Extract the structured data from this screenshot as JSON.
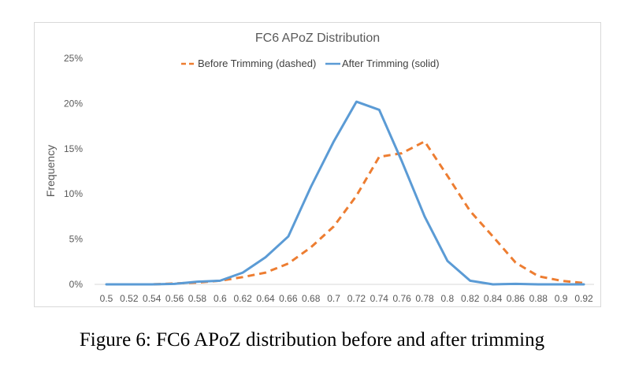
{
  "chart_data": {
    "type": "line",
    "title": "FC6 APoZ Distribution",
    "xlabel": "",
    "ylabel": "Frequency",
    "categories": [
      "0.5",
      "0.52",
      "0.54",
      "0.56",
      "0.58",
      "0.6",
      "0.62",
      "0.64",
      "0.66",
      "0.68",
      "0.7",
      "0.72",
      "0.74",
      "0.76",
      "0.78",
      "0.8",
      "0.82",
      "0.84",
      "0.86",
      "0.88",
      "0.9",
      "0.92"
    ],
    "y_ticks": [
      "0%",
      "5%",
      "10%",
      "15%",
      "20%",
      "25%"
    ],
    "ylim": [
      0,
      25
    ],
    "y_unit": "%",
    "grid": false,
    "legend_position": "top-center",
    "series": [
      {
        "name": "Before Trimming (dashed)",
        "style": "dashed",
        "color": "#ED7D31",
        "values": [
          0,
          0,
          0,
          0.1,
          0.2,
          0.4,
          0.8,
          1.3,
          2.3,
          4.1,
          6.4,
          9.8,
          14.1,
          14.5,
          15.8,
          12.0,
          8.1,
          5.3,
          2.4,
          0.9,
          0.4,
          0.15
        ]
      },
      {
        "name": "After Trimming (solid)",
        "style": "solid",
        "color": "#5B9BD5",
        "values": [
          0,
          0,
          0,
          0.05,
          0.3,
          0.4,
          1.3,
          3.0,
          5.3,
          10.8,
          15.8,
          20.2,
          19.3,
          13.6,
          7.5,
          2.6,
          0.4,
          0,
          0.05,
          0,
          0,
          0
        ]
      }
    ]
  },
  "caption": "Figure 6: FC6 APoZ distribution before and after trimming"
}
